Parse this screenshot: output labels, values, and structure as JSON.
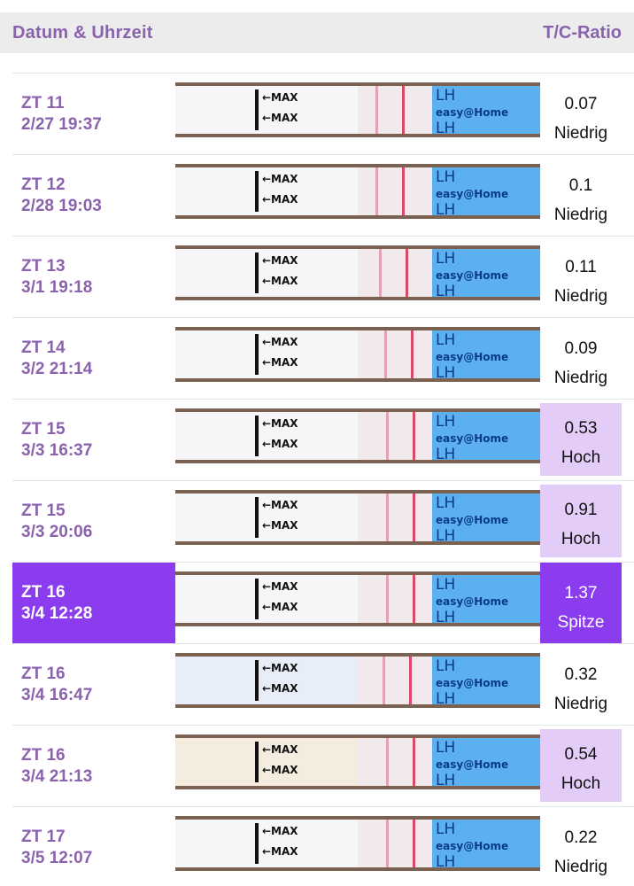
{
  "header": {
    "left": "Datum & Uhrzeit",
    "right": "T/C-Ratio"
  },
  "strip_text": {
    "max": "←MAX",
    "lh": "LH",
    "brand": "easy@Home"
  },
  "rows": [
    {
      "day": "ZT 11",
      "datetime": "2/27 19:37",
      "value": "0.07",
      "level": "Niedrig",
      "status": "low"
    },
    {
      "day": "ZT 12",
      "datetime": "2/28 19:03",
      "value": "0.1",
      "level": "Niedrig",
      "status": "low"
    },
    {
      "day": "ZT 13",
      "datetime": "3/1 19:18",
      "value": "0.11",
      "level": "Niedrig",
      "status": "low"
    },
    {
      "day": "ZT 14",
      "datetime": "3/2 21:14",
      "value": "0.09",
      "level": "Niedrig",
      "status": "low"
    },
    {
      "day": "ZT 15",
      "datetime": "3/3 16:37",
      "value": "0.53",
      "level": "Hoch",
      "status": "high"
    },
    {
      "day": "ZT 15",
      "datetime": "3/3 20:06",
      "value": "0.91",
      "level": "Hoch",
      "status": "high"
    },
    {
      "day": "ZT 16",
      "datetime": "3/4 12:28",
      "value": "1.37",
      "level": "Spitze",
      "status": "peak"
    },
    {
      "day": "ZT 16",
      "datetime": "3/4 16:47",
      "value": "0.32",
      "level": "Niedrig",
      "status": "low"
    },
    {
      "day": "ZT 16",
      "datetime": "3/4 21:13",
      "value": "0.54",
      "level": "Hoch",
      "status": "high"
    },
    {
      "day": "ZT 17",
      "datetime": "3/5 12:07",
      "value": "0.22",
      "level": "Niedrig",
      "status": "low"
    }
  ],
  "colors": {
    "accent": "#8a62ad",
    "peak": "#8b3cef",
    "high_bg": "#e3ccf7",
    "control_line": "#d94a6a",
    "strip_blue": "#5cb0f0"
  }
}
